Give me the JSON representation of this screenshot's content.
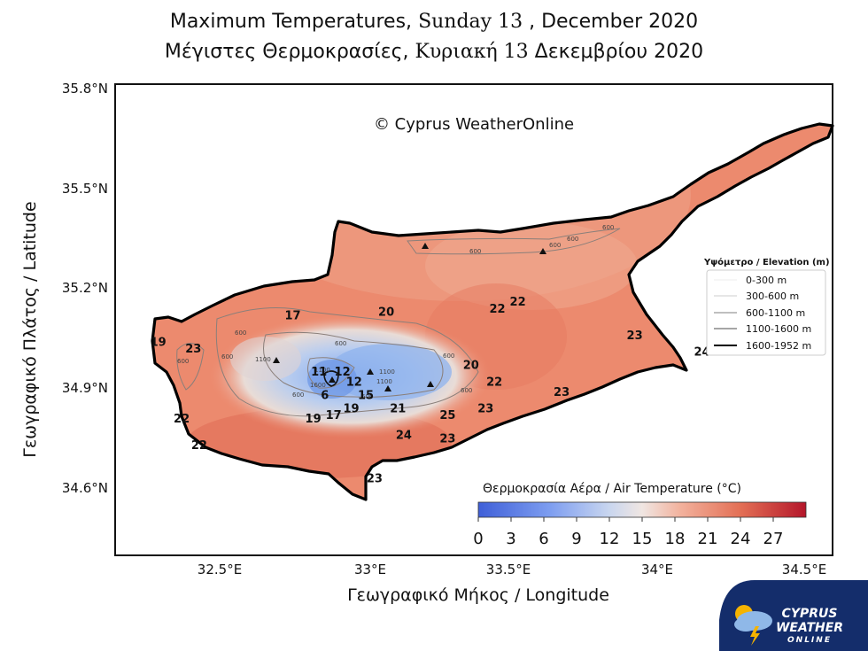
{
  "title": {
    "line1_a": "Maximum Temperatures,",
    "line1_b": "Sunday 13",
    "line1_c": ", December 2020",
    "line2_a": "Μέγιστες Θερμοκρασίες,",
    "line2_b": "Κυριακή 13",
    "line2_c": "Δεκεμβρίου 2020"
  },
  "copyright": "© Cyprus WeatherOnline",
  "axes": {
    "ylabel": "Γεωγραφικό Πλάτος / Latitude",
    "xlabel": "Γεωγραφικό Μήκος / Longitude",
    "yticks": [
      "35.8°N",
      "35.5°N",
      "35.2°N",
      "34.9°N",
      "34.6°N"
    ],
    "xticks": [
      "32.5°E",
      "33°E",
      "33.5°E",
      "34°E",
      "34.5°E"
    ]
  },
  "elevation_legend": {
    "title": "Υψόμετρο / Elevation (m)",
    "items": [
      "0-300 m",
      "300-600 m",
      "600-1100 m",
      "1100-1600 m",
      "1600-1952 m"
    ]
  },
  "colorbar": {
    "title": "Θερμοκρασία Αέρα / Air Temperature (°C)",
    "ticks": [
      "0",
      "3",
      "6",
      "9",
      "12",
      "15",
      "18",
      "21",
      "24",
      "27"
    ]
  },
  "contour_labels": [
    "600",
    "600",
    "600",
    "600",
    "1100",
    "1100",
    "600",
    "1100",
    "1600",
    "600",
    "600",
    "600",
    "600",
    "1100",
    "600",
    "600",
    "600"
  ],
  "temperatures": [
    {
      "value": "17",
      "lon": 32.75,
      "lat": 35.12
    },
    {
      "value": "20",
      "lon": 33.07,
      "lat": 35.13
    },
    {
      "value": "22",
      "lon": 33.45,
      "lat": 35.14
    },
    {
      "value": "22",
      "lon": 33.52,
      "lat": 35.16
    },
    {
      "value": "19",
      "lon": 32.29,
      "lat": 35.04
    },
    {
      "value": "23",
      "lon": 32.41,
      "lat": 35.02
    },
    {
      "value": "23",
      "lon": 33.92,
      "lat": 35.06
    },
    {
      "value": "24",
      "lon": 34.15,
      "lat": 35.01
    },
    {
      "value": "20",
      "lon": 33.36,
      "lat": 34.97
    },
    {
      "value": "11",
      "lon": 32.84,
      "lat": 34.95
    },
    {
      "value": "12",
      "lon": 32.92,
      "lat": 34.95
    },
    {
      "value": "12",
      "lon": 32.96,
      "lat": 34.92
    },
    {
      "value": "6",
      "lon": 32.86,
      "lat": 34.88
    },
    {
      "value": "15",
      "lon": 33.0,
      "lat": 34.88
    },
    {
      "value": "22",
      "lon": 33.44,
      "lat": 34.92
    },
    {
      "value": "23",
      "lon": 33.67,
      "lat": 34.89
    },
    {
      "value": "22",
      "lon": 32.37,
      "lat": 34.81
    },
    {
      "value": "19",
      "lon": 32.82,
      "lat": 34.81
    },
    {
      "value": "17",
      "lon": 32.89,
      "lat": 34.82
    },
    {
      "value": "19",
      "lon": 32.95,
      "lat": 34.84
    },
    {
      "value": "21",
      "lon": 33.11,
      "lat": 34.84
    },
    {
      "value": "25",
      "lon": 33.28,
      "lat": 34.82
    },
    {
      "value": "23",
      "lon": 33.41,
      "lat": 34.84
    },
    {
      "value": "24",
      "lon": 33.13,
      "lat": 34.76
    },
    {
      "value": "23",
      "lon": 33.28,
      "lat": 34.75
    },
    {
      "value": "22",
      "lon": 32.43,
      "lat": 34.73
    },
    {
      "value": "23",
      "lon": 33.03,
      "lat": 34.63
    }
  ],
  "logo": {
    "line1": "CYPRUS",
    "line2": "WEATHER",
    "line3": "ONLINE"
  },
  "colors": {
    "land": "#ec8a6e",
    "sea": "#ffffff",
    "cold": "#8fb3ee"
  }
}
